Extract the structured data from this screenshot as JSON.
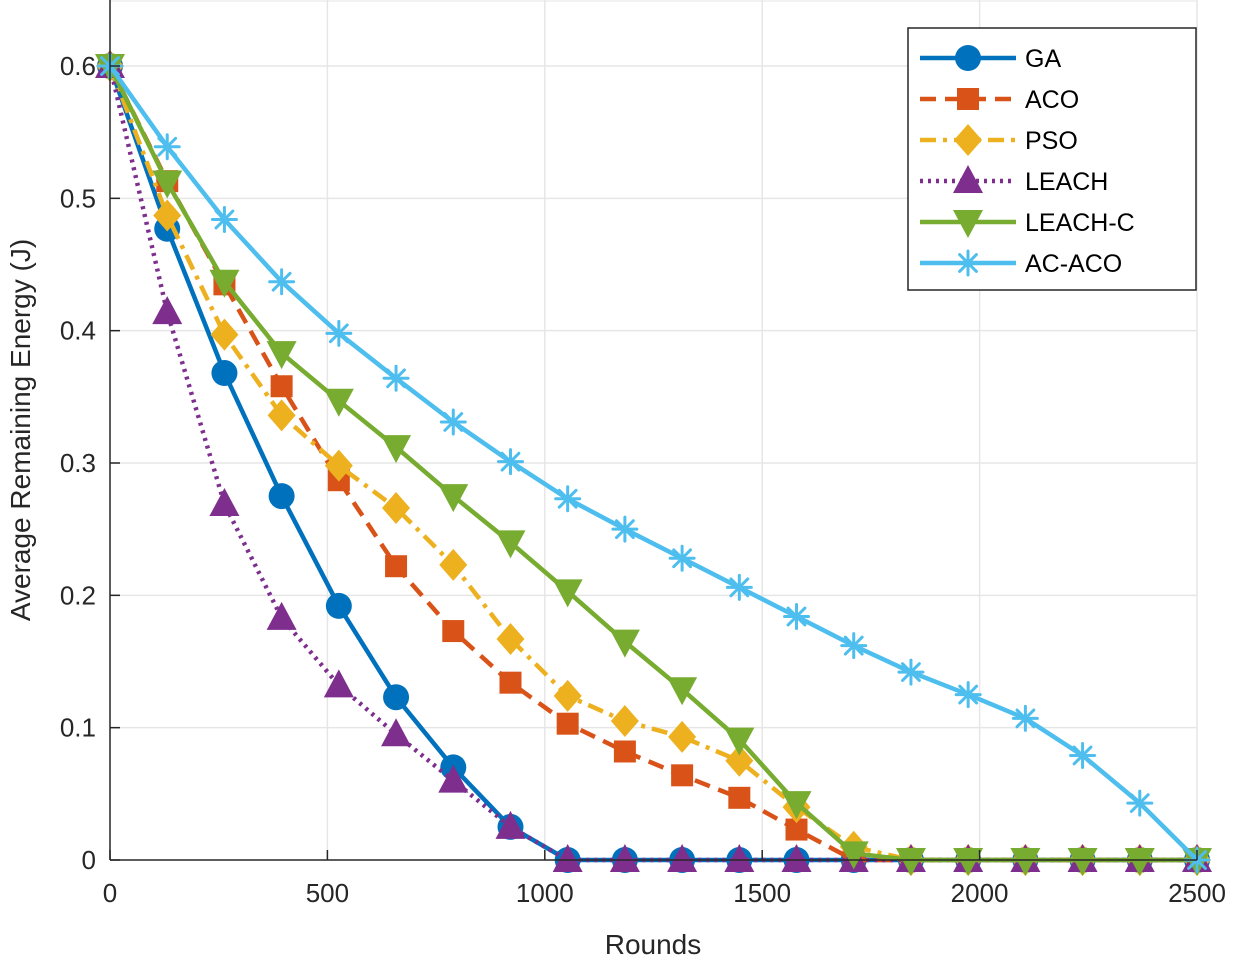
{
  "chart_data": {
    "type": "line",
    "title": "",
    "xlabel": "Rounds",
    "ylabel": "Average Remaining Energy (J)",
    "xlim": [
      0,
      2500
    ],
    "ylim": [
      0,
      0.6
    ],
    "xticks": [
      0,
      500,
      1000,
      1500,
      2000,
      2500
    ],
    "yticks": [
      0,
      0.1,
      0.2,
      0.3,
      0.4,
      0.5,
      0.6
    ],
    "xtick_labels": [
      "0",
      "500",
      "1000",
      "1500",
      "2000",
      "2500"
    ],
    "ytick_labels": [
      "0",
      "0.1",
      "0.2",
      "0.3",
      "0.4",
      "0.5",
      "0.6"
    ],
    "grid": true,
    "legend_position": "top-right",
    "x": [
      0,
      131.6,
      263.2,
      394.7,
      526.3,
      657.9,
      789.5,
      921.1,
      1052.6,
      1184.2,
      1315.8,
      1447.4,
      1578.9,
      1710.5,
      1842.1,
      1973.7,
      2105.3,
      2236.8,
      2368.4,
      2500
    ],
    "series": [
      {
        "name": "GA",
        "color": "#0072BD",
        "marker": "circle",
        "dash": "solid",
        "values": [
          0.6,
          0.477,
          0.368,
          0.275,
          0.192,
          0.123,
          0.07,
          0.025,
          0,
          0,
          0,
          0,
          0,
          0,
          0,
          0,
          0,
          0,
          0,
          0
        ]
      },
      {
        "name": "ACO",
        "color": "#D95319",
        "marker": "square",
        "dash": "dashed",
        "values": [
          0.6,
          0.513,
          0.435,
          0.358,
          0.287,
          0.222,
          0.173,
          0.134,
          0.103,
          0.082,
          0.064,
          0.047,
          0.023,
          0,
          0,
          0,
          0,
          0,
          0,
          0
        ]
      },
      {
        "name": "PSO",
        "color": "#EDB120",
        "marker": "diamond",
        "dash": "dashdot",
        "values": [
          0.6,
          0.487,
          0.397,
          0.336,
          0.298,
          0.266,
          0.223,
          0.167,
          0.124,
          0.105,
          0.093,
          0.075,
          0.04,
          0.01,
          0,
          0,
          0,
          0,
          0,
          0
        ]
      },
      {
        "name": "LEACH",
        "color": "#7E2F8E",
        "marker": "triangle-up",
        "dash": "dotted",
        "values": [
          0.6,
          0.414,
          0.269,
          0.183,
          0.132,
          0.095,
          0.06,
          0.025,
          0,
          0,
          0,
          0,
          0,
          0,
          0,
          0,
          0,
          0,
          0,
          0
        ]
      },
      {
        "name": "LEACH-C",
        "color": "#77AC30",
        "marker": "triangle-down",
        "dash": "solid",
        "values": [
          0.6,
          0.512,
          0.437,
          0.383,
          0.347,
          0.312,
          0.275,
          0.24,
          0.203,
          0.165,
          0.129,
          0.091,
          0.043,
          0.005,
          0,
          0,
          0,
          0,
          0,
          0
        ]
      },
      {
        "name": "AC-ACO",
        "color": "#4DBEEE",
        "marker": "asterisk",
        "dash": "solid",
        "values": [
          0.6,
          0.539,
          0.484,
          0.437,
          0.398,
          0.364,
          0.331,
          0.301,
          0.273,
          0.25,
          0.228,
          0.206,
          0.184,
          0.162,
          0.142,
          0.125,
          0.107,
          0.079,
          0.043,
          0
        ]
      }
    ]
  }
}
